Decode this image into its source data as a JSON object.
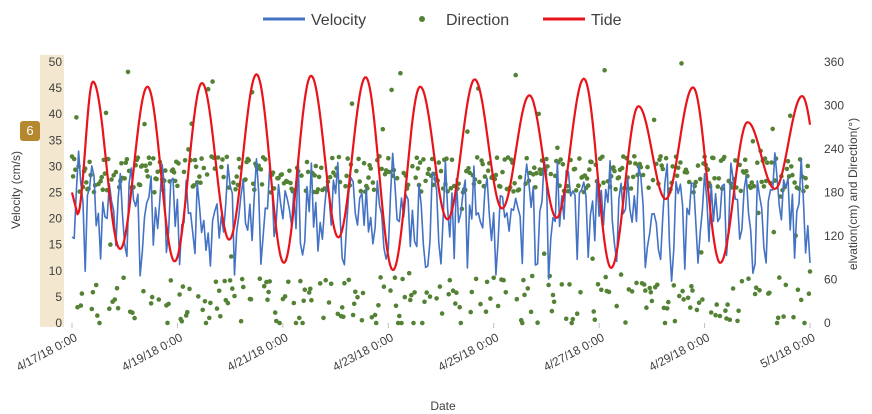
{
  "badge": {
    "label": "6"
  },
  "chart_data": {
    "type": "line",
    "legend_position": "top",
    "grid": false,
    "xlabel": "Date",
    "ylabel_left": "Velocity (cm/s)",
    "ylabel_right": "elvation(cm) and Direction(°)",
    "x_range": [
      "4/17/18 0:00",
      "5/1/18 0:00"
    ],
    "ylim_left": [
      0,
      50
    ],
    "ylim_right": [
      0,
      360
    ],
    "left_ticks": [
      "0",
      "5",
      "10",
      "15",
      "20",
      "25",
      "30",
      "35",
      "40",
      "45",
      "50"
    ],
    "right_ticks": [
      "0",
      "60",
      "120",
      "180",
      "240",
      "300",
      "360"
    ],
    "x_ticks": [
      "4/17/18 0:00",
      "4/19/18 0:00",
      "4/21/18 0:00",
      "4/23/18 0:00",
      "4/25/18 0:00",
      "4/27/18 0:00",
      "4/29/18 0:00",
      "5/1/18 0:00"
    ],
    "series": [
      {
        "name": "Velocity",
        "color": "#4472C4",
        "style": "line",
        "axis": "left",
        "sampling_hours": 1,
        "oscillation_period_hours": 12.42,
        "typical_range": [
          2,
          34
        ]
      },
      {
        "name": "Direction",
        "color": "#548235",
        "style": "scatter",
        "axis": "right",
        "clusters_deg": [
          205,
          30
        ],
        "scatter_range": [
          0,
          360
        ]
      },
      {
        "name": "Tide",
        "color": "#E8141B",
        "style": "line",
        "axis": "right",
        "period_hours": 24.84,
        "peak_elevations": [
          333,
          326,
          331,
          343,
          341,
          339,
          326,
          336,
          314,
          337,
          299,
          325,
          277,
          313
        ],
        "trough_elevations": [
          140,
          102,
          85,
          115,
          83,
          118,
          73,
          143,
          158,
          145,
          76,
          171,
          83,
          185,
          107
        ]
      }
    ]
  }
}
